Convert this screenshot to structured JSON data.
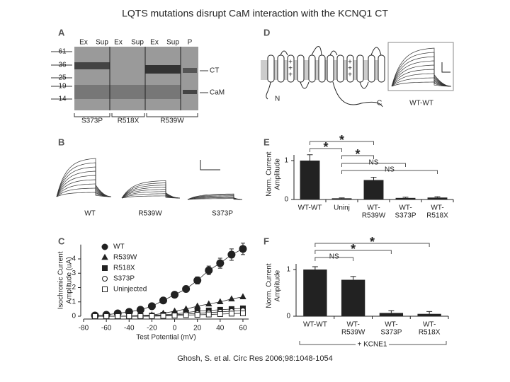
{
  "title": "LQTS mutations disrupt CaM interaction with the KCNQ1 CT",
  "citation": "Ghosh, S. et al. Circ Res 2006;98:1048-1054",
  "panel_labels": [
    "A",
    "B",
    "C",
    "D",
    "E",
    "F"
  ],
  "gel": {
    "lanes": [
      "Ex",
      "Sup",
      "Ex",
      "Sup",
      "Ex",
      "Sup",
      "P"
    ],
    "markers": [
      "61",
      "36",
      "25",
      "19",
      "14"
    ],
    "bands": [
      "CT",
      "CaM"
    ],
    "groups": [
      "S373P",
      "R518X",
      "R539W"
    ]
  },
  "topology": {
    "termini": [
      "N",
      "C"
    ],
    "charges": [
      "+",
      "+",
      "+",
      "+",
      "+",
      "+"
    ],
    "trace_label": "WT-WT"
  },
  "traces": {
    "labels": [
      "WT",
      "R539W",
      "S373P"
    ]
  },
  "chart_data": [
    {
      "type": "line",
      "xlabel": "Test Potential (mV)",
      "ylabel": [
        "Isochronic Current",
        "Amplitude (uA)"
      ],
      "x": [
        -70,
        -60,
        -50,
        -40,
        -30,
        -20,
        -10,
        0,
        10,
        20,
        30,
        40,
        50,
        60
      ],
      "xlim": [
        -80,
        65
      ],
      "xticks": [
        -80,
        -60,
        -40,
        -20,
        0,
        20,
        40,
        60
      ],
      "ylim": [
        0,
        5
      ],
      "yticks": [
        0,
        1,
        2,
        3,
        4
      ],
      "legend": "upper left",
      "series": [
        {
          "name": "WT",
          "marker": "circle",
          "filled": true,
          "color": "#222",
          "values": [
            0.05,
            0.1,
            0.2,
            0.3,
            0.45,
            0.7,
            1.1,
            1.5,
            1.9,
            2.5,
            3.2,
            3.7,
            4.3,
            4.7
          ],
          "errors": [
            0.05,
            0.05,
            0.05,
            0.1,
            0.1,
            0.1,
            0.15,
            0.15,
            0.2,
            0.25,
            0.3,
            0.35,
            0.4,
            0.4
          ]
        },
        {
          "name": "R539W",
          "marker": "triangle",
          "filled": true,
          "color": "#222",
          "values": [
            0,
            0,
            0,
            0.02,
            0.05,
            0.08,
            0.2,
            0.35,
            0.5,
            0.7,
            0.85,
            1.0,
            1.2,
            1.35
          ]
        },
        {
          "name": "R518X",
          "marker": "square",
          "filled": true,
          "color": "#222",
          "values": [
            0,
            0,
            0,
            0,
            0.02,
            0.05,
            0.1,
            0.15,
            0.25,
            0.35,
            0.4,
            0.45,
            0.5,
            0.55
          ]
        },
        {
          "name": "S373P",
          "marker": "circle",
          "filled": false,
          "color": "#222",
          "values": [
            0,
            0,
            0,
            0,
            0,
            0.02,
            0.05,
            0.1,
            0.15,
            0.2,
            0.25,
            0.3,
            0.35,
            0.4
          ]
        },
        {
          "name": "Uninjected",
          "marker": "square",
          "filled": false,
          "color": "#222",
          "values": [
            0,
            0,
            0,
            0,
            0,
            0,
            0.02,
            0.05,
            0.08,
            0.1,
            0.12,
            0.15,
            0.18,
            0.2
          ]
        }
      ]
    },
    {
      "type": "bar",
      "ylabel": [
        "Norm. Current",
        "Amplitude"
      ],
      "color": "#222",
      "categories": [
        [
          "WT-WT"
        ],
        [
          "Uninj"
        ],
        [
          "WT-",
          "R539W"
        ],
        [
          "WT-",
          "S373P"
        ],
        [
          "WT-",
          "R518X"
        ]
      ],
      "values": [
        1.0,
        0.03,
        0.5,
        0.04,
        0.05
      ],
      "errors": [
        0.15,
        0.01,
        0.07,
        0.02,
        0.02
      ],
      "ylim": [
        0,
        1.3
      ],
      "yticks": [
        0,
        1
      ],
      "annotations": [
        "*",
        "*",
        "*",
        "NS",
        "NS"
      ]
    },
    {
      "type": "bar",
      "ylabel": [
        "Norm. Current",
        "Amplitude"
      ],
      "color": "#222",
      "categories": [
        [
          "WT-WT"
        ],
        [
          "WT-",
          "R539W"
        ],
        [
          "WT-",
          "S373P"
        ],
        [
          "WT-",
          "R518X"
        ]
      ],
      "values": [
        1.0,
        0.78,
        0.07,
        0.05
      ],
      "errors": [
        0.06,
        0.07,
        0.05,
        0.05
      ],
      "ylim": [
        0,
        1.3
      ],
      "yticks": [
        0,
        1
      ],
      "annotations": [
        "NS",
        "*",
        "*"
      ],
      "footer": "+ KCNE1"
    }
  ]
}
